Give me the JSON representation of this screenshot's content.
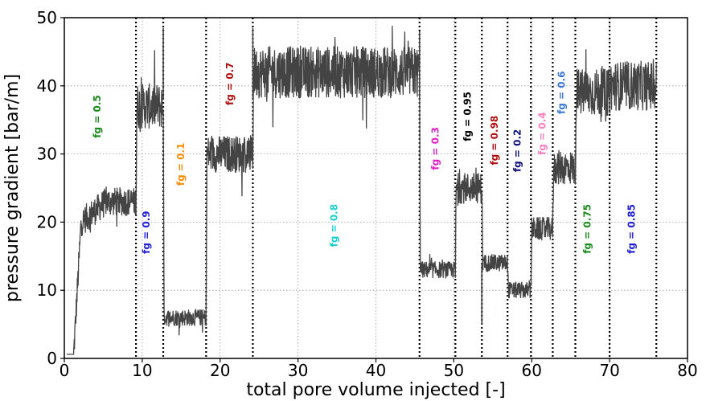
{
  "chart_data": {
    "type": "line",
    "xlabel": "total pore volume injected [-]",
    "ylabel": "pressure gradient [bar/m]",
    "xlim": [
      0,
      80
    ],
    "ylim": [
      0,
      50
    ],
    "xticks": [
      "0",
      "10",
      "20",
      "30",
      "40",
      "50",
      "60",
      "70",
      "80"
    ],
    "yticks": [
      "0",
      "10",
      "20",
      "30",
      "40",
      "50"
    ],
    "grid": true,
    "line_color": "#444444",
    "boundaries": [
      9.2,
      12.7,
      18.2,
      24.2,
      45.6,
      50.2,
      53.6,
      56.9,
      59.9,
      62.7,
      65.6,
      70.0,
      76.0
    ],
    "segments": [
      {
        "x_start": 1.2,
        "x_end": 9.2,
        "mean": 23
      },
      {
        "x_start": 9.2,
        "x_end": 12.7,
        "mean": 37
      },
      {
        "x_start": 12.7,
        "x_end": 18.2,
        "mean": 6
      },
      {
        "x_start": 18.2,
        "x_end": 24.2,
        "mean": 30
      },
      {
        "x_start": 24.2,
        "x_end": 45.6,
        "mean": 42
      },
      {
        "x_start": 45.6,
        "x_end": 50.2,
        "mean": 13
      },
      {
        "x_start": 50.2,
        "x_end": 53.6,
        "mean": 25
      },
      {
        "x_start": 53.6,
        "x_end": 56.9,
        "mean": 14
      },
      {
        "x_start": 56.9,
        "x_end": 59.9,
        "mean": 10
      },
      {
        "x_start": 59.9,
        "x_end": 62.7,
        "mean": 19
      },
      {
        "x_start": 62.7,
        "x_end": 65.6,
        "mean": 28
      },
      {
        "x_start": 65.6,
        "x_end": 70.0,
        "mean": 39
      },
      {
        "x_start": 70.0,
        "x_end": 76.0,
        "mean": 40
      }
    ],
    "annotations": [
      {
        "text": "fg = 0.5",
        "x": 4.3,
        "y": 35.5,
        "color": "#1a8a1a"
      },
      {
        "text": "fg = 0.9",
        "x": 10.6,
        "y": 18.5,
        "color": "#1f1fd6"
      },
      {
        "text": "fg = 0.1",
        "x": 15.0,
        "y": 28.5,
        "color": "#ff8c00"
      },
      {
        "text": "fg = 0.7",
        "x": 21.3,
        "y": 40.3,
        "color": "#b01010"
      },
      {
        "text": "fg = 0.8",
        "x": 34.7,
        "y": 19.5,
        "color": "#1ecfcf"
      },
      {
        "text": "fg = 0.3",
        "x": 47.7,
        "y": 30.8,
        "color": "#e020c8"
      },
      {
        "text": "fg = 0.95",
        "x": 51.8,
        "y": 35.5,
        "color": "#000000"
      },
      {
        "text": "fg = 0.98",
        "x": 55.3,
        "y": 32.0,
        "color": "#b01010"
      },
      {
        "text": "fg = 0.2",
        "x": 58.2,
        "y": 30.5,
        "color": "#10107a"
      },
      {
        "text": "fg = 0.4",
        "x": 61.4,
        "y": 33.0,
        "color": "#ff7fbf"
      },
      {
        "text": "fg = 0.6",
        "x": 63.9,
        "y": 39.0,
        "color": "#3a78d8"
      },
      {
        "text": "fg = 0.75",
        "x": 67.2,
        "y": 19.0,
        "color": "#1a8a1a"
      },
      {
        "text": "fg = 0.85",
        "x": 72.9,
        "y": 19.0,
        "color": "#1f1fd6"
      }
    ]
  }
}
